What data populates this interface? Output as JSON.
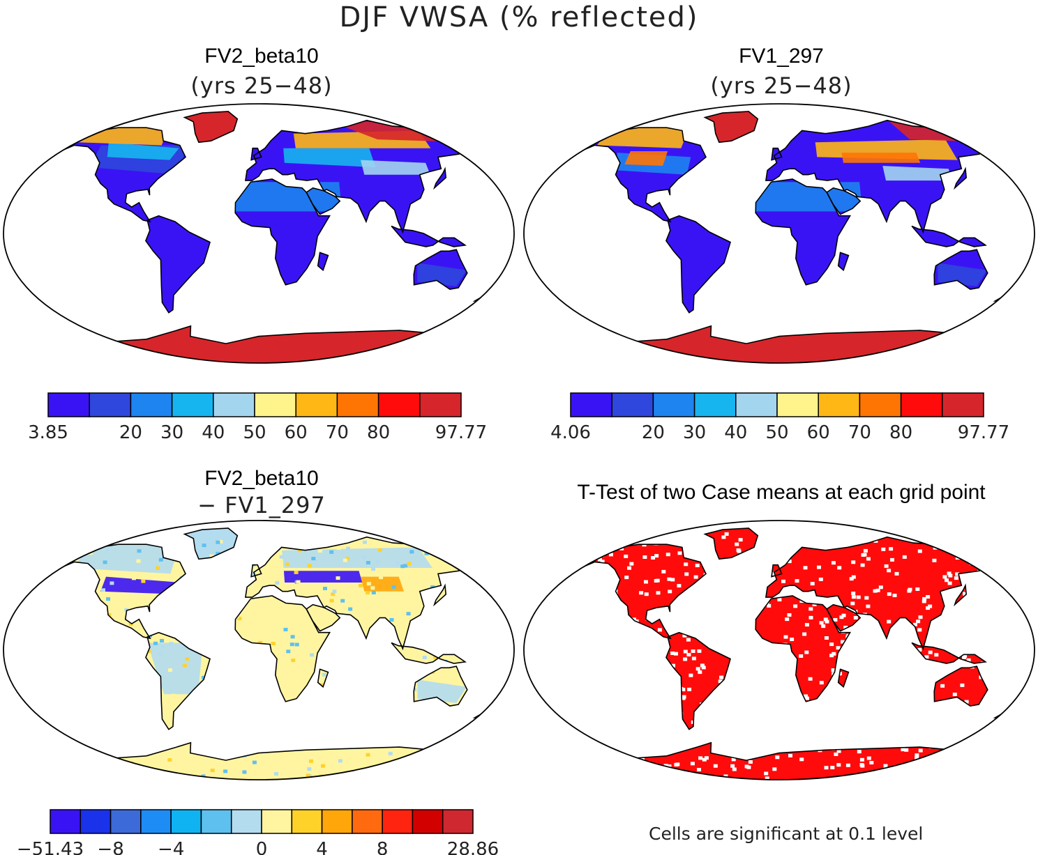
{
  "title": "DJF VWSA (% reflected)",
  "panels": [
    {
      "id": "p1",
      "title": "FV2_beta10",
      "subtitle": "(yrs 25−48)"
    },
    {
      "id": "p2",
      "title": "FV1_297",
      "subtitle": "(yrs 25−48)"
    },
    {
      "id": "p3",
      "title": "FV2_beta10",
      "subtitle": "− FV1_297"
    },
    {
      "id": "p4",
      "title": "T-Test of two Case means at each grid point",
      "subtitle": ""
    }
  ],
  "colorbars": {
    "cb1": {
      "colors": [
        "#3a13f5",
        "#2f47dc",
        "#1e84f0",
        "#17b5ef",
        "#a3d5ef",
        "#fff38c",
        "#ffb716",
        "#ff7504",
        "#ff0b0b",
        "#d6262b"
      ],
      "labels": [
        {
          "i": 0,
          "text": "3.85"
        },
        {
          "i": 2,
          "text": "20"
        },
        {
          "i": 3,
          "text": "30"
        },
        {
          "i": 4,
          "text": "40"
        },
        {
          "i": 5,
          "text": "50"
        },
        {
          "i": 6,
          "text": "60"
        },
        {
          "i": 7,
          "text": "70"
        },
        {
          "i": 8,
          "text": "80"
        },
        {
          "i": 10,
          "text": "97.77"
        }
      ]
    },
    "cb2": {
      "colors": [
        "#3a13f5",
        "#2f47dc",
        "#1e84f0",
        "#17b5ef",
        "#a3d5ef",
        "#fff38c",
        "#ffb716",
        "#ff7504",
        "#ff0b0b",
        "#d6262b"
      ],
      "labels": [
        {
          "i": 0,
          "text": "4.06"
        },
        {
          "i": 2,
          "text": "20"
        },
        {
          "i": 3,
          "text": "30"
        },
        {
          "i": 4,
          "text": "40"
        },
        {
          "i": 5,
          "text": "50"
        },
        {
          "i": 6,
          "text": "60"
        },
        {
          "i": 7,
          "text": "70"
        },
        {
          "i": 8,
          "text": "80"
        },
        {
          "i": 10,
          "text": "97.77"
        }
      ]
    },
    "cb3": {
      "colors": [
        "#3a13f5",
        "#1a32ea",
        "#3d6ad9",
        "#1e8cf5",
        "#10b3f2",
        "#5ec0ef",
        "#b3dcef",
        "#fff5a0",
        "#ffd22a",
        "#ffa60a",
        "#ff6a10",
        "#ff2410",
        "#d30000",
        "#cf2830"
      ],
      "labels": [
        {
          "i": 0,
          "text": "−51.43"
        },
        {
          "i": 2,
          "text": "−8"
        },
        {
          "i": 4,
          "text": "−4"
        },
        {
          "i": 7,
          "text": "0"
        },
        {
          "i": 9,
          "text": "4"
        },
        {
          "i": 11,
          "text": "8"
        },
        {
          "i": 14,
          "text": "28.86"
        }
      ]
    }
  },
  "footnote": "Cells are significant at 0.1 level",
  "colors": {
    "land_default": "#3a13f5",
    "antarctica": "#d6262b",
    "ttest_fill": "#ff0b0b",
    "diff_land": "#fff5a0",
    "diff_ice": "#b3dcef"
  }
}
